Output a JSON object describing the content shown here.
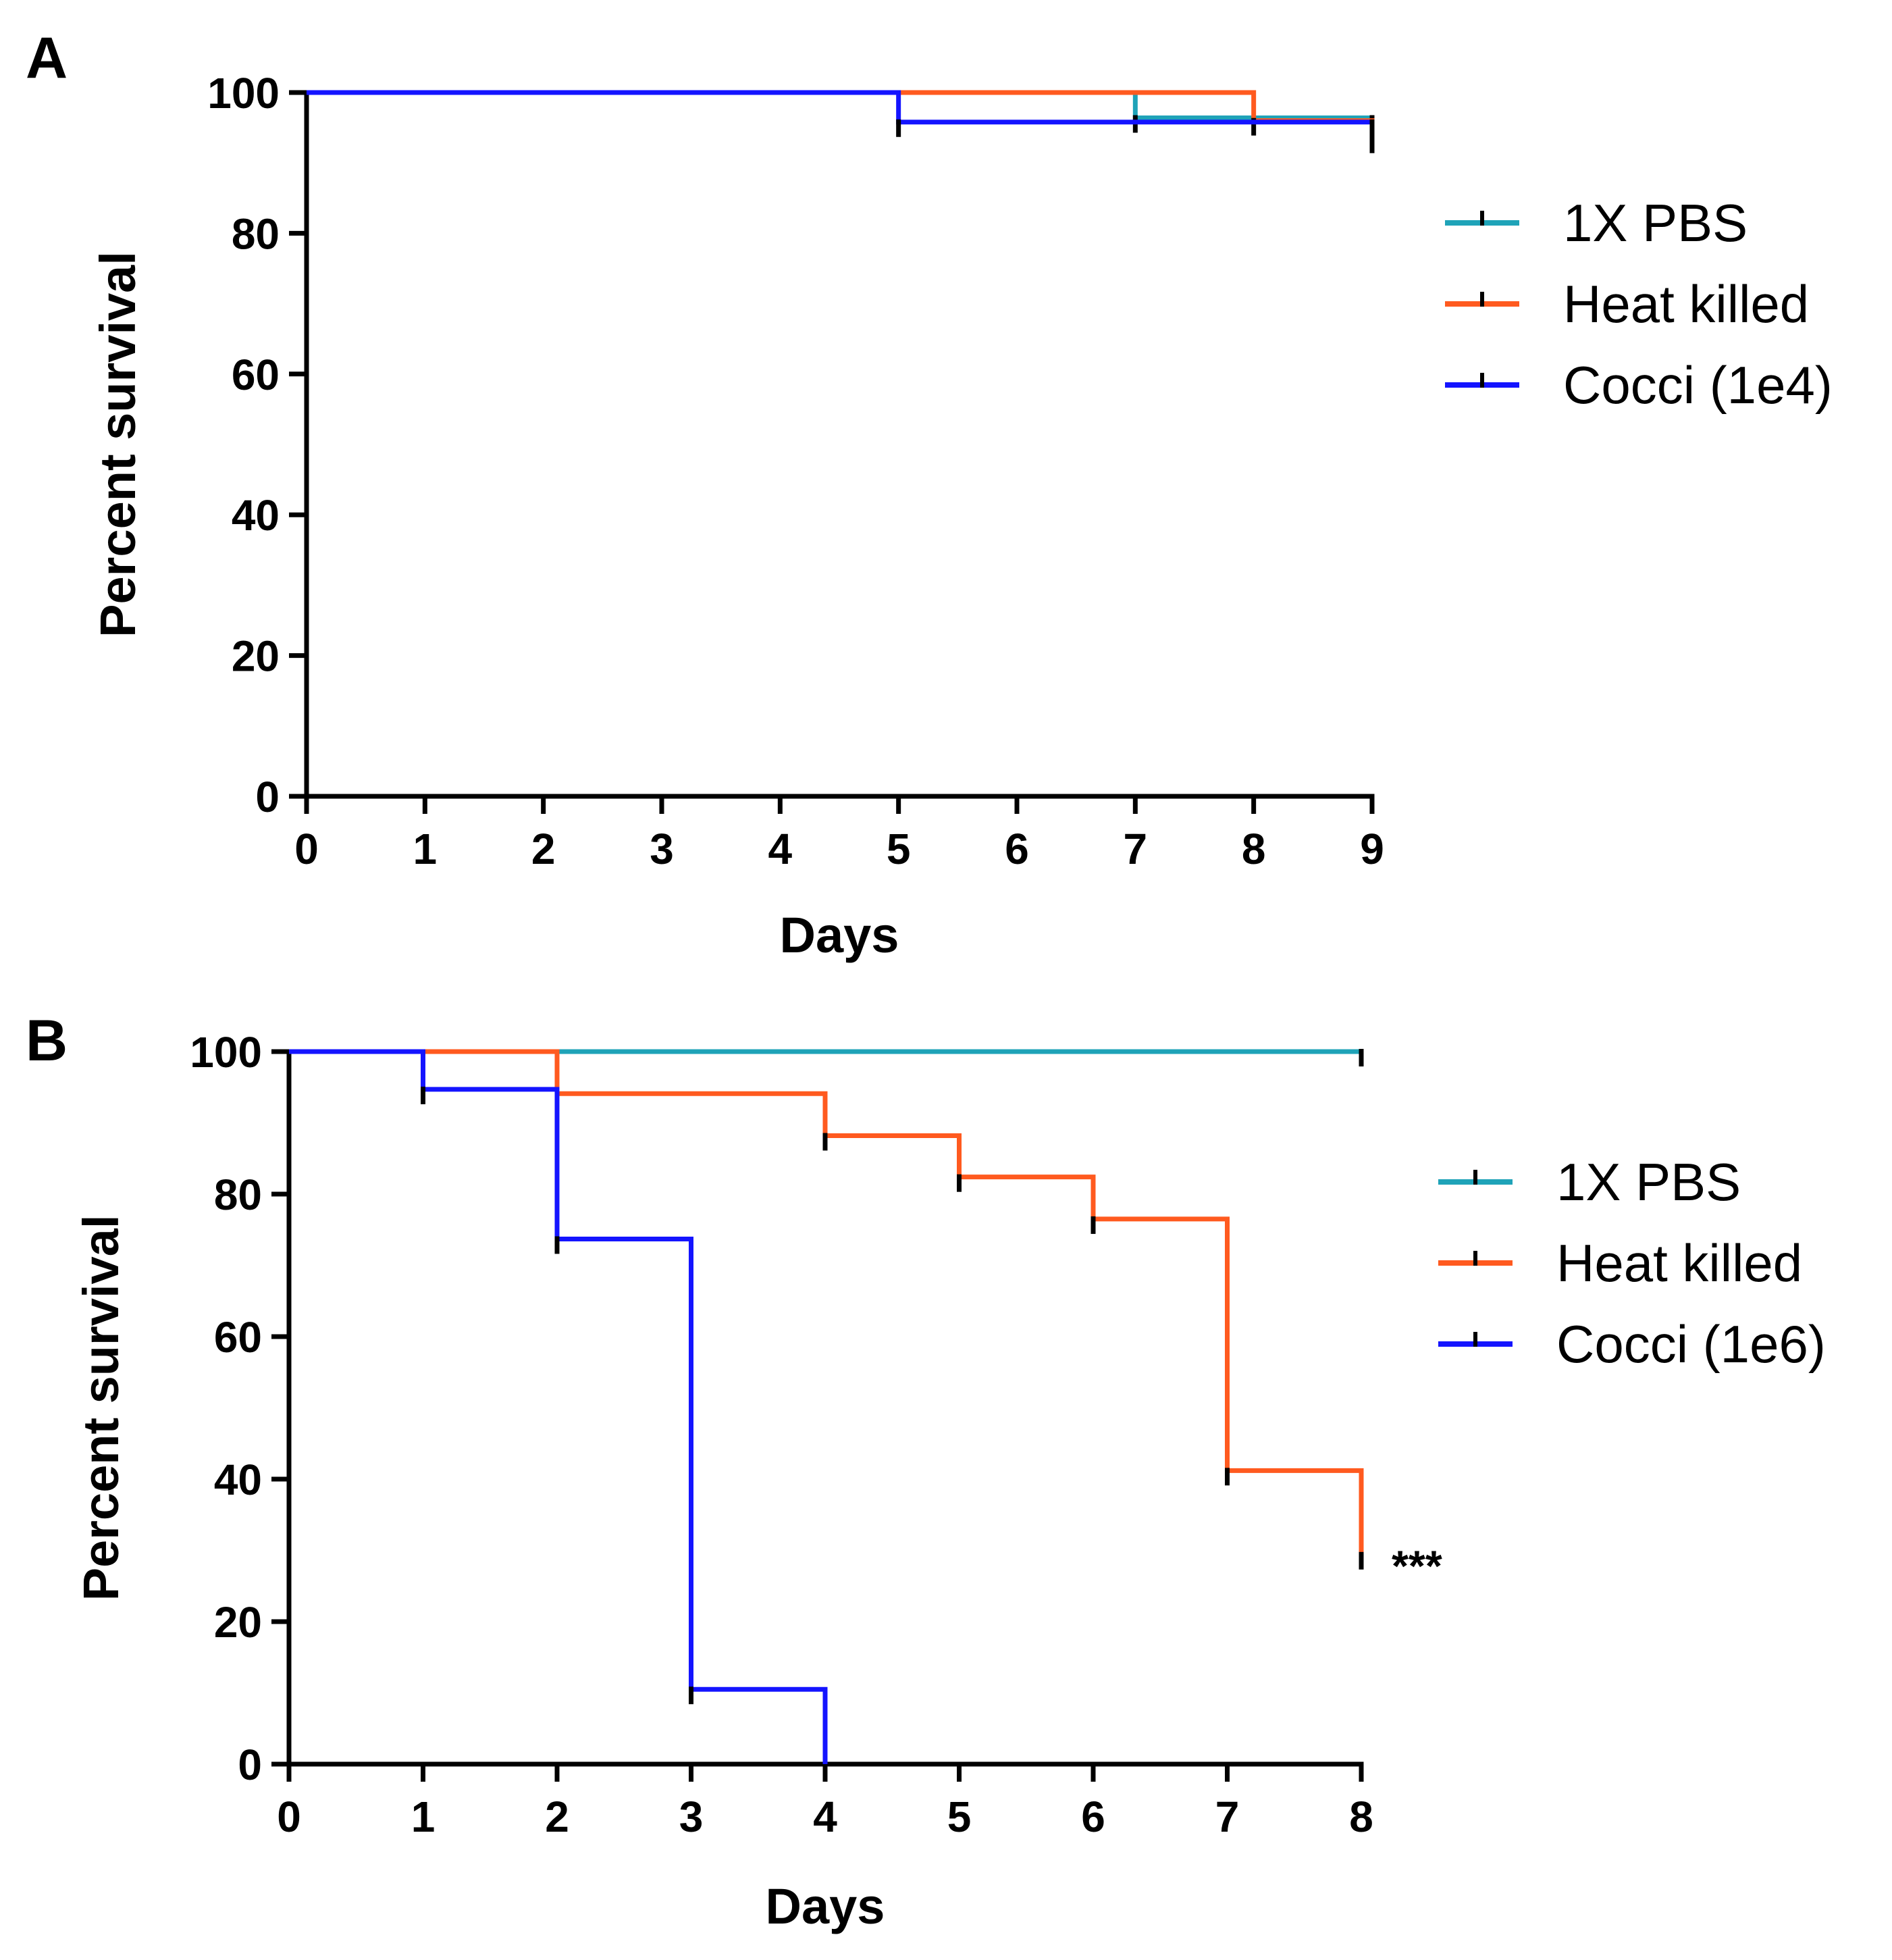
{
  "chart_data": [
    {
      "type": "line",
      "subtype": "kaplan-meier",
      "panel_label": "A",
      "xlabel": "Days",
      "ylabel": "Percent survival",
      "xlim": [
        0,
        9
      ],
      "ylim": [
        0,
        100
      ],
      "x_ticks": [
        0,
        1,
        2,
        3,
        4,
        5,
        6,
        7,
        8,
        9
      ],
      "y_ticks": [
        0,
        20,
        40,
        60,
        80,
        100
      ],
      "legend_position": "right",
      "series": [
        {
          "name": "1X PBS",
          "color": "#1fa3b8",
          "steps": [
            [
              0,
              100
            ],
            [
              7,
              96.4
            ],
            [
              9,
              96.4
            ]
          ],
          "censor_marks": [
            [
              7,
              96.4
            ],
            [
              9,
              96.4
            ]
          ]
        },
        {
          "name": "Heat killed",
          "color": "#ff5a1f",
          "steps": [
            [
              0,
              100
            ],
            [
              8,
              96
            ],
            [
              9,
              93.5
            ]
          ],
          "censor_marks": [
            [
              8,
              96
            ],
            [
              9,
              93.5
            ]
          ]
        },
        {
          "name": "Cocci (1e4)",
          "color": "#1414ff",
          "steps": [
            [
              0,
              100
            ],
            [
              5,
              95.8
            ],
            [
              9,
              95.8
            ]
          ],
          "censor_marks": [
            [
              5,
              95.8
            ],
            [
              9,
              95.8
            ]
          ]
        }
      ],
      "annotations": []
    },
    {
      "type": "line",
      "subtype": "kaplan-meier",
      "panel_label": "B",
      "xlabel": "Days",
      "ylabel": "Percent survival",
      "xlim": [
        0,
        8
      ],
      "ylim": [
        0,
        100
      ],
      "x_ticks": [
        0,
        1,
        2,
        3,
        4,
        5,
        6,
        7,
        8
      ],
      "y_ticks": [
        0,
        20,
        40,
        60,
        80,
        100
      ],
      "legend_position": "right",
      "series": [
        {
          "name": "1X PBS",
          "color": "#1fa3b8",
          "steps": [
            [
              0,
              100
            ],
            [
              8,
              100
            ]
          ],
          "censor_marks": [
            [
              8,
              100
            ]
          ]
        },
        {
          "name": "Heat killed",
          "color": "#ff5a1f",
          "steps": [
            [
              0,
              100
            ],
            [
              2,
              94.1
            ],
            [
              4,
              88.2
            ],
            [
              5,
              82.4
            ],
            [
              6,
              76.5
            ],
            [
              7,
              41.2
            ],
            [
              8,
              29.4
            ]
          ],
          "censor_marks": [
            [
              2,
              94.1
            ],
            [
              4,
              88.2
            ],
            [
              5,
              82.4
            ],
            [
              6,
              76.5
            ],
            [
              7,
              41.2
            ],
            [
              8,
              29.4
            ]
          ]
        },
        {
          "name": "Cocci (1e6)",
          "color": "#1414ff",
          "steps": [
            [
              0,
              100
            ],
            [
              1,
              94.7
            ],
            [
              2,
              73.7
            ],
            [
              3,
              10.5
            ],
            [
              4,
              0
            ]
          ],
          "censor_marks": [
            [
              1,
              94.7
            ],
            [
              2,
              73.7
            ],
            [
              3,
              10.5
            ]
          ]
        }
      ],
      "annotations": [
        {
          "text": "***",
          "x": 8,
          "y": 30,
          "anchor": "right-of-point"
        }
      ]
    }
  ]
}
